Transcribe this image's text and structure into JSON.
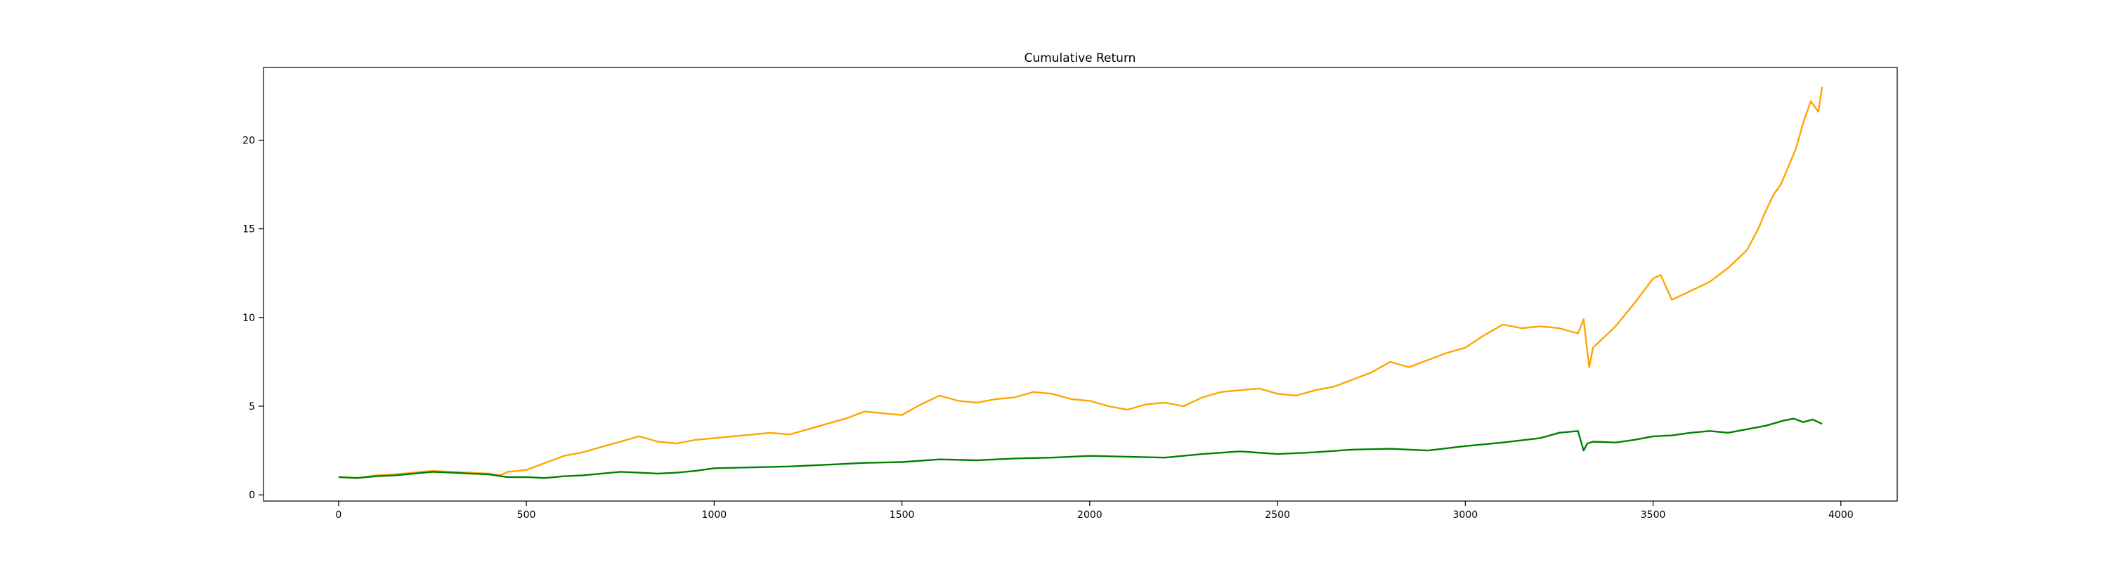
{
  "chart_data": {
    "type": "line",
    "title": "Cumulative Return",
    "xlabel": "",
    "ylabel": "",
    "xlim": [
      -200,
      4150
    ],
    "ylim": [
      -0.35,
      24.1
    ],
    "xticks": [
      0,
      500,
      1000,
      1500,
      2000,
      2500,
      3000,
      3500,
      4000
    ],
    "yticks": [
      0,
      5,
      10,
      15,
      20
    ],
    "grid": false,
    "legend": "none",
    "series": [
      {
        "color": "#ffa500",
        "x": [
          0,
          50,
          100,
          150,
          200,
          250,
          300,
          350,
          400,
          430,
          450,
          500,
          550,
          600,
          650,
          700,
          750,
          800,
          850,
          900,
          950,
          1000,
          1050,
          1100,
          1150,
          1200,
          1250,
          1300,
          1350,
          1400,
          1450,
          1500,
          1550,
          1600,
          1650,
          1700,
          1750,
          1800,
          1850,
          1900,
          1950,
          2000,
          2050,
          2100,
          2150,
          2200,
          2250,
          2300,
          2350,
          2400,
          2450,
          2500,
          2550,
          2600,
          2650,
          2700,
          2750,
          2800,
          2850,
          2900,
          2950,
          3000,
          3050,
          3100,
          3150,
          3200,
          3250,
          3300,
          3315,
          3330,
          3340,
          3350,
          3400,
          3450,
          3500,
          3520,
          3550,
          3600,
          3650,
          3700,
          3750,
          3780,
          3800,
          3820,
          3840,
          3860,
          3880,
          3900,
          3920,
          3940,
          3950
        ],
        "y": [
          1.0,
          0.95,
          1.1,
          1.15,
          1.25,
          1.35,
          1.3,
          1.25,
          1.2,
          1.1,
          1.3,
          1.4,
          1.8,
          2.2,
          2.4,
          2.7,
          3.0,
          3.3,
          3.0,
          2.9,
          3.1,
          3.2,
          3.3,
          3.4,
          3.5,
          3.4,
          3.7,
          4.0,
          4.3,
          4.7,
          4.6,
          4.5,
          5.1,
          5.6,
          5.3,
          5.2,
          5.4,
          5.5,
          5.8,
          5.7,
          5.4,
          5.3,
          5.0,
          4.8,
          5.1,
          5.2,
          5.0,
          5.5,
          5.8,
          5.9,
          6.0,
          5.7,
          5.6,
          5.9,
          6.1,
          6.5,
          6.9,
          7.5,
          7.2,
          7.6,
          8.0,
          8.3,
          9.0,
          9.6,
          9.4,
          9.5,
          9.4,
          9.1,
          9.9,
          7.2,
          8.3,
          8.5,
          9.5,
          10.8,
          12.2,
          12.4,
          11.0,
          11.5,
          12.0,
          12.8,
          13.8,
          15.0,
          16.0,
          16.9,
          17.5,
          18.5,
          19.5,
          21.0,
          22.2,
          21.6,
          23.0
        ]
      },
      {
        "color": "#008000",
        "x": [
          0,
          50,
          100,
          150,
          200,
          250,
          300,
          350,
          400,
          450,
          500,
          550,
          600,
          650,
          700,
          750,
          800,
          850,
          900,
          950,
          1000,
          1100,
          1200,
          1300,
          1400,
          1500,
          1600,
          1700,
          1800,
          1900,
          2000,
          2100,
          2200,
          2300,
          2400,
          2500,
          2600,
          2700,
          2800,
          2900,
          3000,
          3100,
          3200,
          3250,
          3300,
          3315,
          3325,
          3340,
          3400,
          3450,
          3500,
          3550,
          3600,
          3650,
          3700,
          3750,
          3800,
          3850,
          3875,
          3900,
          3925,
          3950
        ],
        "y": [
          1.0,
          0.95,
          1.05,
          1.1,
          1.2,
          1.3,
          1.25,
          1.2,
          1.15,
          1.0,
          1.0,
          0.95,
          1.05,
          1.1,
          1.2,
          1.3,
          1.25,
          1.2,
          1.25,
          1.35,
          1.5,
          1.55,
          1.6,
          1.7,
          1.8,
          1.85,
          2.0,
          1.95,
          2.05,
          2.1,
          2.2,
          2.15,
          2.1,
          2.3,
          2.45,
          2.3,
          2.4,
          2.55,
          2.6,
          2.5,
          2.75,
          2.95,
          3.2,
          3.5,
          3.6,
          2.5,
          2.9,
          3.0,
          2.95,
          3.1,
          3.3,
          3.35,
          3.5,
          3.6,
          3.5,
          3.7,
          3.9,
          4.2,
          4.3,
          4.1,
          4.25,
          4.0
        ]
      }
    ]
  }
}
